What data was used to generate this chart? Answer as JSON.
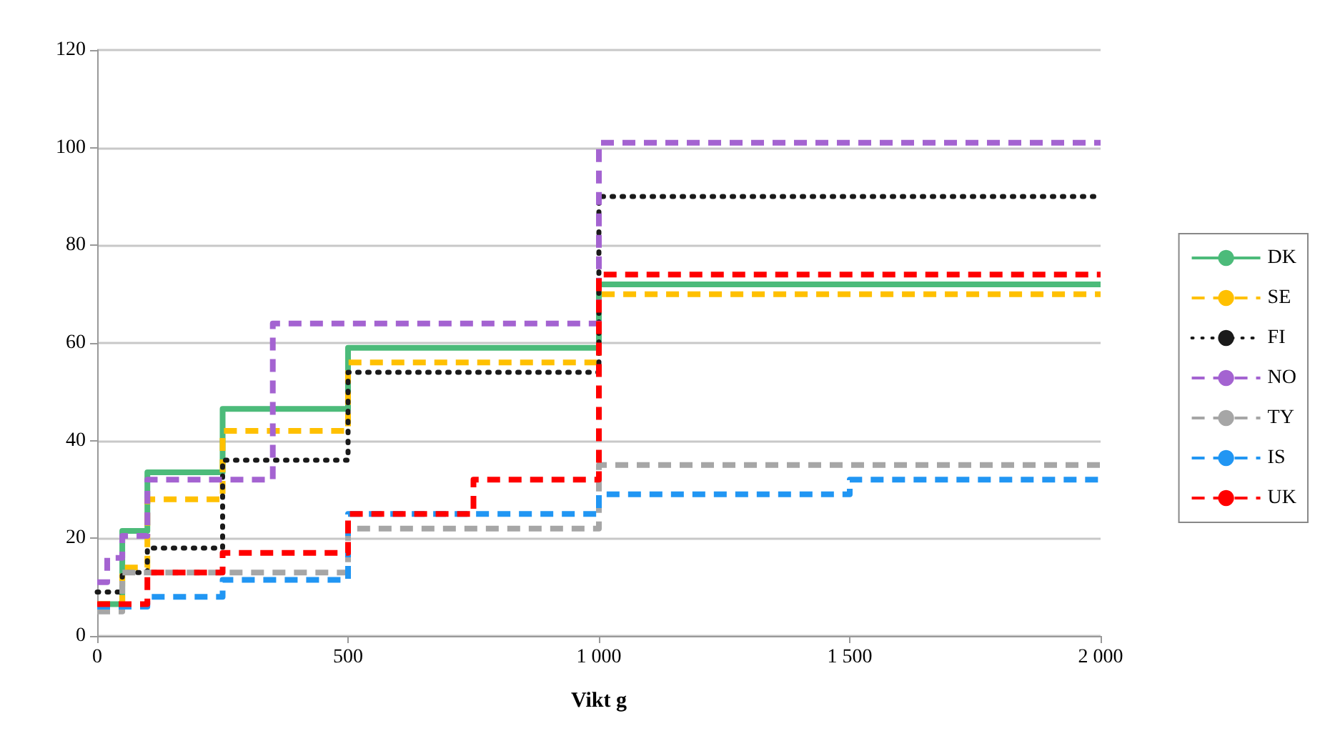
{
  "chart_data": {
    "type": "step",
    "xlabel": "Vikt g",
    "xlim": [
      0,
      2000
    ],
    "xticks": [
      0,
      500,
      {
        "value": 1000,
        "label": "1 000"
      },
      {
        "value": 1500,
        "label": "1 500"
      },
      {
        "value": 2000,
        "label": "2 000"
      }
    ],
    "ylim": [
      0,
      120
    ],
    "yticks": [
      0,
      20,
      40,
      60,
      80,
      100,
      120
    ],
    "grid": "y",
    "legend": "right",
    "marker": "none",
    "series": [
      {
        "name": "DK",
        "color": "#4cbb7a",
        "line_style": "solid",
        "x": [
          0,
          50,
          100,
          250,
          500,
          1000,
          2000
        ],
        "values": [
          6.5,
          21.5,
          33.5,
          46.5,
          59,
          72,
          72
        ]
      },
      {
        "name": "SE",
        "color": "#ffc000",
        "line_style": "dashed",
        "x": [
          0,
          50,
          100,
          250,
          500,
          1000,
          2000
        ],
        "values": [
          6.5,
          14,
          28,
          42,
          56,
          70,
          70
        ]
      },
      {
        "name": "FI",
        "color": "#1a1a1a",
        "line_style": "dotted",
        "x": [
          0,
          50,
          100,
          250,
          500,
          1000,
          2000
        ],
        "values": [
          9,
          13,
          18,
          36,
          54,
          90,
          90
        ]
      },
      {
        "name": "NO",
        "color": "#a463d1",
        "line_style": "dashed",
        "x": [
          0,
          20,
          50,
          100,
          350,
          1000,
          2000
        ],
        "values": [
          11,
          16,
          20.5,
          32,
          64,
          101,
          101
        ]
      },
      {
        "name": "TY",
        "color": "#a6a6a6",
        "line_style": "dashed",
        "x": [
          0,
          50,
          500,
          1000,
          2000
        ],
        "values": [
          5,
          13,
          22,
          35,
          35
        ]
      },
      {
        "name": "IS",
        "color": "#2196f3",
        "line_style": "dashed",
        "x": [
          0,
          100,
          250,
          500,
          1000,
          1500,
          2000
        ],
        "values": [
          6,
          8,
          11.5,
          25,
          29,
          32,
          32
        ]
      },
      {
        "name": "UK",
        "color": "#ff0000",
        "line_style": "dashed",
        "x": [
          0,
          100,
          250,
          500,
          750,
          1000,
          2000
        ],
        "values": [
          6.5,
          13,
          17,
          25,
          32,
          74,
          74
        ]
      }
    ]
  }
}
